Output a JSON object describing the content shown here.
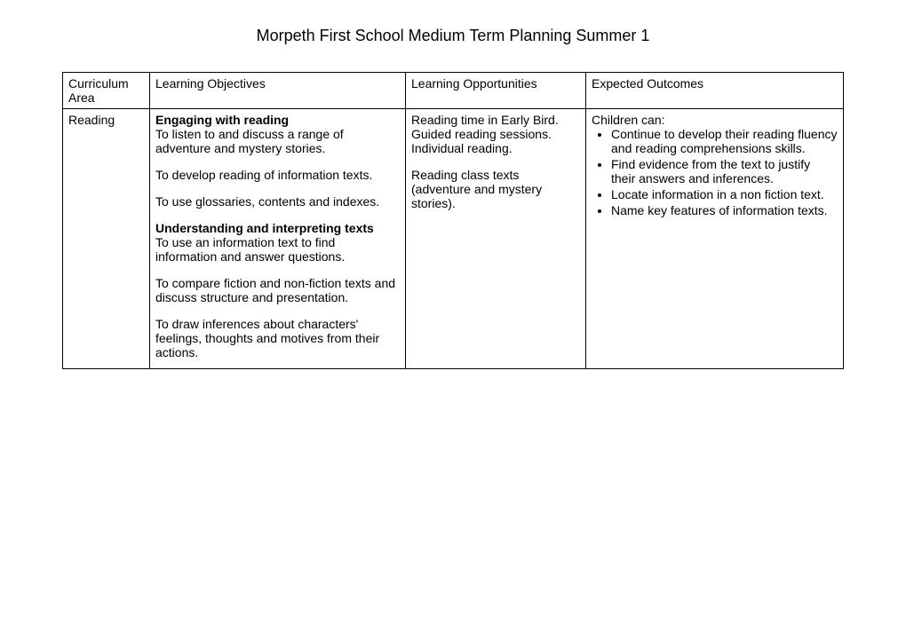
{
  "title": "Morpeth First School Medium Term Planning Summer 1",
  "headers": {
    "col1": "Curriculum Area",
    "col2": "Learning Objectives",
    "col3": "Learning Opportunities",
    "col4": "Expected Outcomes"
  },
  "row": {
    "area": "Reading",
    "objectives": {
      "h1": "Engaging with reading",
      "p1": "To listen to and discuss a range of adventure and mystery stories.",
      "p2": "To develop reading of information texts.",
      "p3": "To use glossaries, contents and indexes.",
      "h2": "Understanding and interpreting texts",
      "p4": "To use an information text to find information and answer questions.",
      "p5": "To compare fiction and non-fiction texts and discuss structure and presentation.",
      "p6": "To draw inferences about characters' feelings, thoughts and motives from their actions."
    },
    "opportunities": {
      "p1": "Reading time in Early Bird. Guided reading sessions. Individual reading.",
      "p2": "Reading class texts (adventure and mystery stories)."
    },
    "outcomes": {
      "lead": "Children can:",
      "b1": "Continue to develop their reading fluency and reading comprehensions skills.",
      "b2": "Find evidence from the text to justify their answers and inferences.",
      "b3": "Locate information in a non fiction text.",
      "b4": "Name key features of information texts."
    }
  }
}
